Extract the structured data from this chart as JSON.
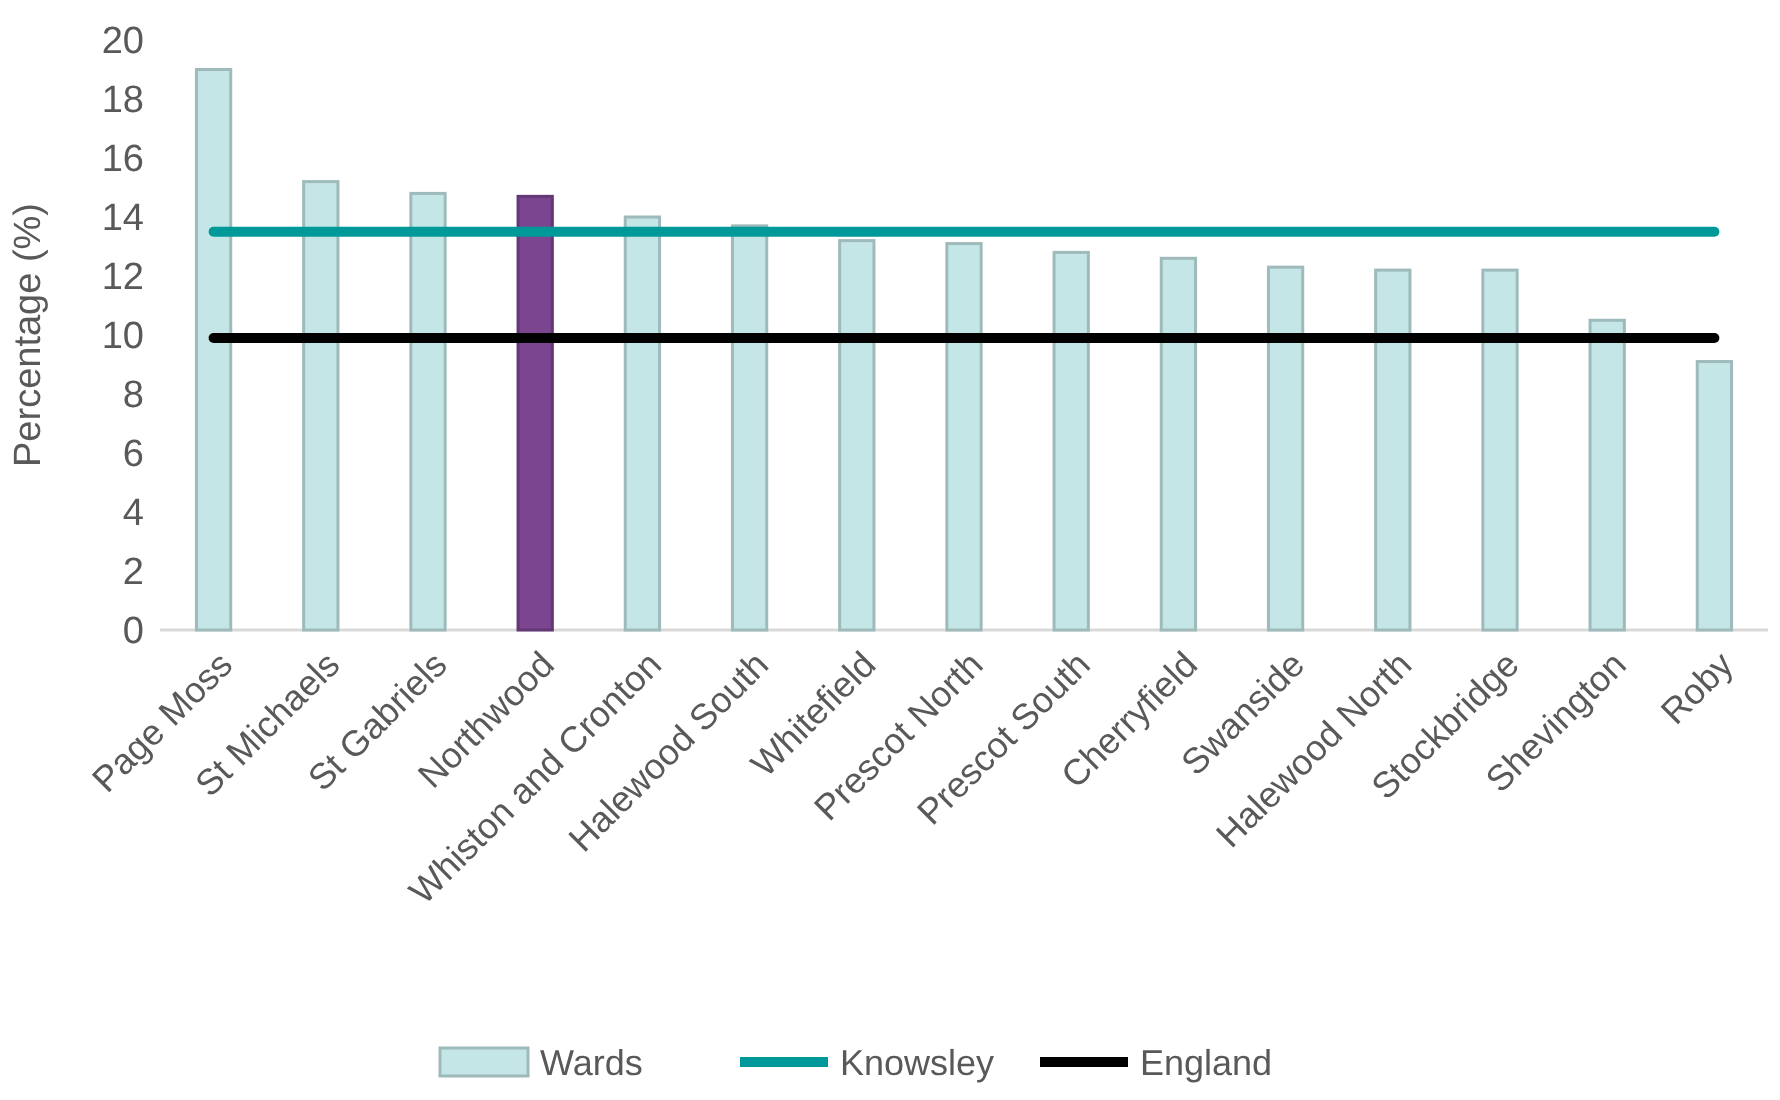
{
  "chart_data": {
    "type": "bar",
    "ylabel": "Percentage (%)",
    "categories": [
      "Page Moss",
      "St Michaels",
      "St Gabriels",
      "Northwood",
      "Whiston and Cronton",
      "Halewood South",
      "Whitefield",
      "Prescot North",
      "Prescot South",
      "Cherryfield",
      "Swanside",
      "Halewood North",
      "Stockbridge",
      "Shevington",
      "Roby"
    ],
    "series": [
      {
        "name": "Wards",
        "color": "#c5e6e6",
        "colors": [
          "#c5e6e6",
          "#c5e6e6",
          "#c5e6e6",
          "#7b4590",
          "#c5e6e6",
          "#c5e6e6",
          "#c5e6e6",
          "#c5e6e6",
          "#c5e6e6",
          "#c5e6e6",
          "#c5e6e6",
          "#c5e6e6",
          "#c5e6e6",
          "#c5e6e6",
          "#c5e6e6"
        ],
        "values": [
          19.0,
          15.2,
          14.8,
          14.7,
          14.0,
          13.7,
          13.2,
          13.1,
          12.8,
          12.6,
          12.3,
          12.2,
          12.2,
          10.5,
          9.1
        ]
      },
      {
        "name": "Knowsley",
        "type": "line",
        "color": "#009999",
        "values": [
          13.5,
          13.5,
          13.5,
          13.5,
          13.5,
          13.5,
          13.5,
          13.5,
          13.5,
          13.5,
          13.5,
          13.5,
          13.5,
          13.5,
          13.5
        ]
      },
      {
        "name": "England",
        "type": "line",
        "color": "#000000",
        "values": [
          9.9,
          9.9,
          9.9,
          9.9,
          9.9,
          9.9,
          9.9,
          9.9,
          9.9,
          9.9,
          9.9,
          9.9,
          9.9,
          9.9,
          9.9
        ]
      }
    ],
    "ylim": [
      0,
      20
    ],
    "yticks": [
      0,
      2,
      4,
      6,
      8,
      10,
      12,
      14,
      16,
      18,
      20
    ],
    "grid": false,
    "legend": "bottom",
    "marker": "none",
    "line_style": "solid"
  }
}
